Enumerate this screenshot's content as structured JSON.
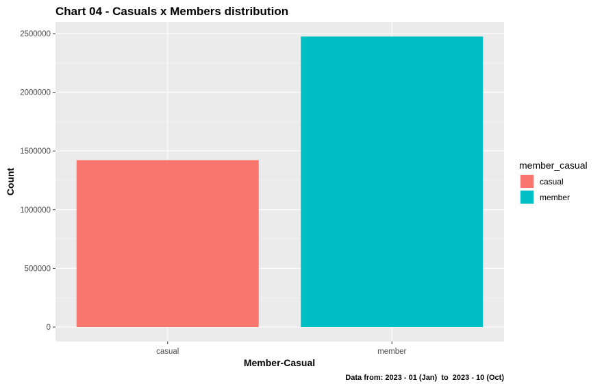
{
  "chart_data": {
    "type": "bar",
    "title": "Chart 04 - Casuals x Members distribution",
    "xlabel": "Member-Casual",
    "ylabel": "Count",
    "caption": "Data from: 2023 - 01 (Jan)  to  2023 - 10 (Oct)",
    "categories": [
      "casual",
      "member"
    ],
    "values": [
      1422000,
      2475000
    ],
    "colors": [
      "#F8766D",
      "#00BFC4"
    ],
    "ylim": [
      0,
      2500000
    ],
    "yticks": [
      0,
      500000,
      1000000,
      1500000,
      2000000,
      2500000
    ],
    "ytick_labels": [
      "0",
      "500000",
      "1000000",
      "1500000",
      "2000000",
      "2500000"
    ],
    "legend": {
      "title": "member_casual",
      "entries": [
        "casual",
        "member"
      ],
      "position": "right"
    },
    "panel_background": "#EBEBEB",
    "grid": true
  }
}
